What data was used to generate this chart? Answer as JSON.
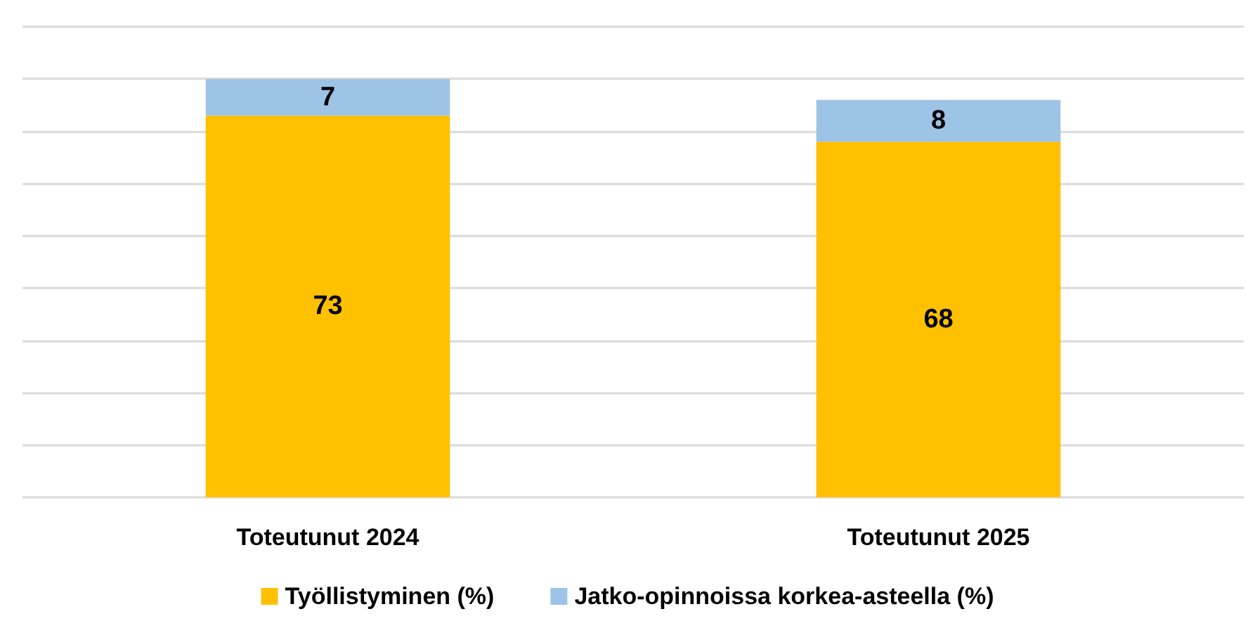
{
  "chart_data": {
    "type": "bar",
    "stacked": true,
    "categories": [
      "Toteutunut 2024",
      "Toteutunut 2025"
    ],
    "series": [
      {
        "name": "Työllistyminen (%)",
        "color": "#ffc000",
        "values": [
          73,
          68
        ]
      },
      {
        "name": "Jatko-opinnoissa korkea-asteella (%)",
        "color": "#9dc3e6",
        "values": [
          7,
          8
        ]
      }
    ],
    "ylim": [
      0,
      90
    ],
    "yticks": [
      {
        "value": 0,
        "label": null
      },
      {
        "value": 10,
        "label": null
      },
      {
        "value": 20,
        "label": null
      },
      {
        "value": 30,
        "label": null
      },
      {
        "value": 40,
        "label": null
      },
      {
        "value": 50,
        "label": null
      },
      {
        "value": 60,
        "label": null
      },
      {
        "value": 70,
        "label": null
      },
      {
        "value": 80,
        "label": null
      },
      {
        "value": 90,
        "label": null
      }
    ],
    "tick_labels": "x",
    "grid": "y",
    "legend": "bottom",
    "data_labels": true
  }
}
